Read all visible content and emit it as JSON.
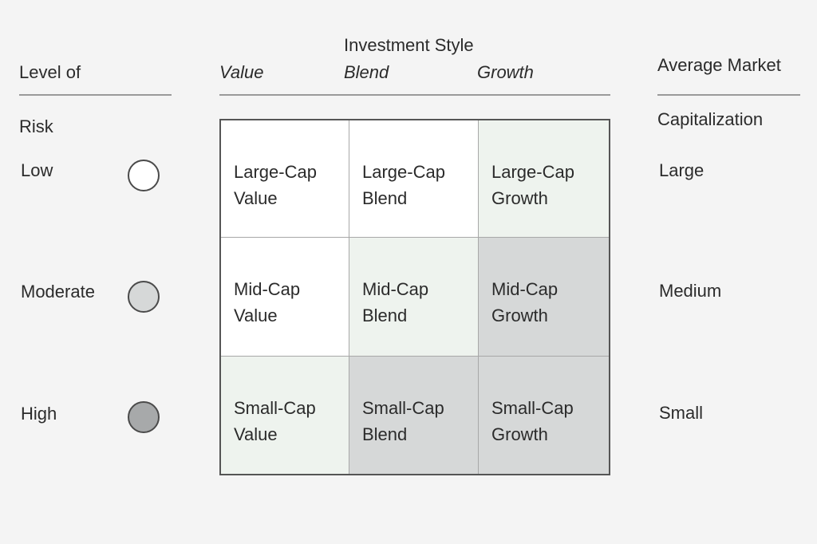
{
  "headers": {
    "risk_title_line1": "Level of",
    "risk_title_line2": "Risk",
    "style_title": "Investment Style",
    "style_columns": [
      "Value",
      "Blend",
      "Growth"
    ],
    "cap_title_line1": "Average Market",
    "cap_title_line2": "Capitalization"
  },
  "risk_levels": [
    {
      "label": "Low",
      "dot_color": "#ffffff"
    },
    {
      "label": "Moderate",
      "dot_color": "#d6d8d8"
    },
    {
      "label": "High",
      "dot_color": "#a7a9aa"
    }
  ],
  "cap_sizes": [
    "Large",
    "Medium",
    "Small"
  ],
  "grid": [
    [
      {
        "line1": "Large-Cap",
        "line2": "Value",
        "fill": "#ffffff"
      },
      {
        "line1": "Large-Cap",
        "line2": "Blend",
        "fill": "#ffffff"
      },
      {
        "line1": "Large-Cap",
        "line2": "Growth",
        "fill": "#eef3ee"
      }
    ],
    [
      {
        "line1": "Mid-Cap",
        "line2": "Value",
        "fill": "#ffffff"
      },
      {
        "line1": "Mid-Cap",
        "line2": "Blend",
        "fill": "#eef3ee"
      },
      {
        "line1": "Mid-Cap",
        "line2": "Growth",
        "fill": "#d6d8d8"
      }
    ],
    [
      {
        "line1": "Small-Cap",
        "line2": "Value",
        "fill": "#eef3ee"
      },
      {
        "line1": "Small-Cap",
        "line2": "Blend",
        "fill": "#d6d8d8"
      },
      {
        "line1": "Small-Cap",
        "line2": "Growth",
        "fill": "#d6d8d8"
      }
    ]
  ]
}
